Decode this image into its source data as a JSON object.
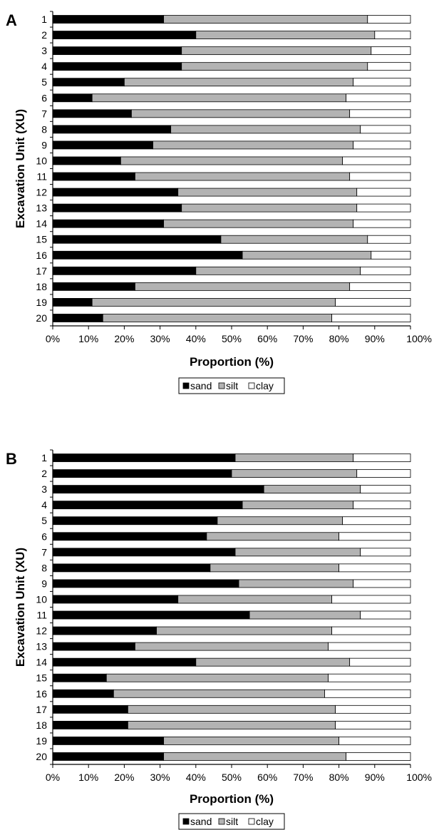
{
  "legend_labels": [
    "sand",
    "silt",
    "clay"
  ],
  "colors": {
    "sand": "#000000",
    "silt": "#b3b3b3",
    "clay": "#ffffff",
    "outline": "#000000"
  },
  "chart_data": [
    {
      "type": "bar",
      "orientation": "horizontal",
      "stacked": true,
      "panel_label": "A",
      "categories": [
        "1",
        "2",
        "3",
        "4",
        "5",
        "6",
        "7",
        "8",
        "9",
        "10",
        "11",
        "12",
        "13",
        "14",
        "15",
        "16",
        "17",
        "18",
        "19",
        "20"
      ],
      "series": [
        {
          "name": "sand",
          "values": [
            31,
            40,
            36,
            36,
            20,
            11,
            22,
            33,
            28,
            19,
            23,
            35,
            36,
            31,
            47,
            53,
            40,
            23,
            11,
            14
          ]
        },
        {
          "name": "silt",
          "values": [
            57,
            50,
            53,
            52,
            64,
            71,
            61,
            53,
            56,
            62,
            60,
            50,
            49,
            53,
            41,
            36,
            46,
            60,
            68,
            64
          ]
        },
        {
          "name": "clay",
          "values": [
            12,
            10,
            11,
            12,
            16,
            18,
            17,
            14,
            16,
            19,
            17,
            15,
            15,
            16,
            12,
            11,
            14,
            17,
            21,
            22
          ]
        }
      ],
      "xlabel": "Proportion (%)",
      "ylabel": "Excavation Unit (XU)",
      "x_ticks": [
        "0%",
        "10%",
        "20%",
        "30%",
        "40%",
        "50%",
        "60%",
        "70%",
        "80%",
        "90%",
        "100%"
      ],
      "xlim": [
        0,
        100
      ],
      "grid": false,
      "legend_position": "bottom"
    },
    {
      "type": "bar",
      "orientation": "horizontal",
      "stacked": true,
      "panel_label": "B",
      "categories": [
        "1",
        "2",
        "3",
        "4",
        "5",
        "6",
        "7",
        "8",
        "9",
        "10",
        "11",
        "12",
        "13",
        "14",
        "15",
        "16",
        "17",
        "18",
        "19",
        "20"
      ],
      "series": [
        {
          "name": "sand",
          "values": [
            51,
            50,
            59,
            53,
            46,
            43,
            51,
            44,
            52,
            35,
            55,
            29,
            23,
            40,
            15,
            17,
            21,
            21,
            31,
            31
          ]
        },
        {
          "name": "silt",
          "values": [
            33,
            35,
            27,
            31,
            35,
            37,
            35,
            36,
            32,
            43,
            31,
            49,
            54,
            43,
            62,
            59,
            58,
            58,
            49,
            51
          ]
        },
        {
          "name": "clay",
          "values": [
            16,
            15,
            14,
            16,
            19,
            20,
            14,
            20,
            16,
            22,
            14,
            22,
            23,
            17,
            23,
            24,
            21,
            21,
            20,
            18
          ]
        }
      ],
      "xlabel": "Proportion (%)",
      "ylabel": "Excavation Unit (XU)",
      "x_ticks": [
        "0%",
        "10%",
        "20%",
        "30%",
        "40%",
        "50%",
        "60%",
        "70%",
        "80%",
        "90%",
        "100%"
      ],
      "xlim": [
        0,
        100
      ],
      "grid": false,
      "legend_position": "bottom"
    }
  ]
}
